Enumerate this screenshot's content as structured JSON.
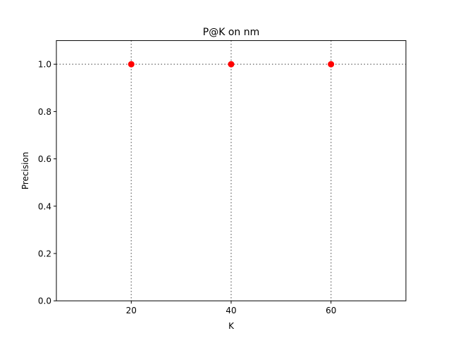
{
  "chart_data": {
    "type": "scatter",
    "title": "P@K on nm",
    "xlabel": "K",
    "ylabel": "Precision",
    "xlim": [
      5,
      75
    ],
    "ylim": [
      0,
      1.1
    ],
    "x_ticks": [
      20,
      40,
      60
    ],
    "y_ticks": [
      0.0,
      0.2,
      0.4,
      0.6,
      0.8,
      1.0
    ],
    "y_tick_labels": [
      "0.0",
      "0.2",
      "0.4",
      "0.6",
      "0.8",
      "1.0"
    ],
    "x_tick_labels": [
      "20",
      "40",
      "60"
    ],
    "grid": false,
    "reference_lines": {
      "horizontal_y": [
        1.0
      ],
      "vertical_x": [
        20,
        40,
        60
      ],
      "style": "dotted",
      "color": "#7f7f7f"
    },
    "series": [
      {
        "x": [
          20,
          40,
          60
        ],
        "y": [
          1.0,
          1.0,
          1.0
        ],
        "color": "#ff0000",
        "marker": "circle"
      }
    ]
  }
}
